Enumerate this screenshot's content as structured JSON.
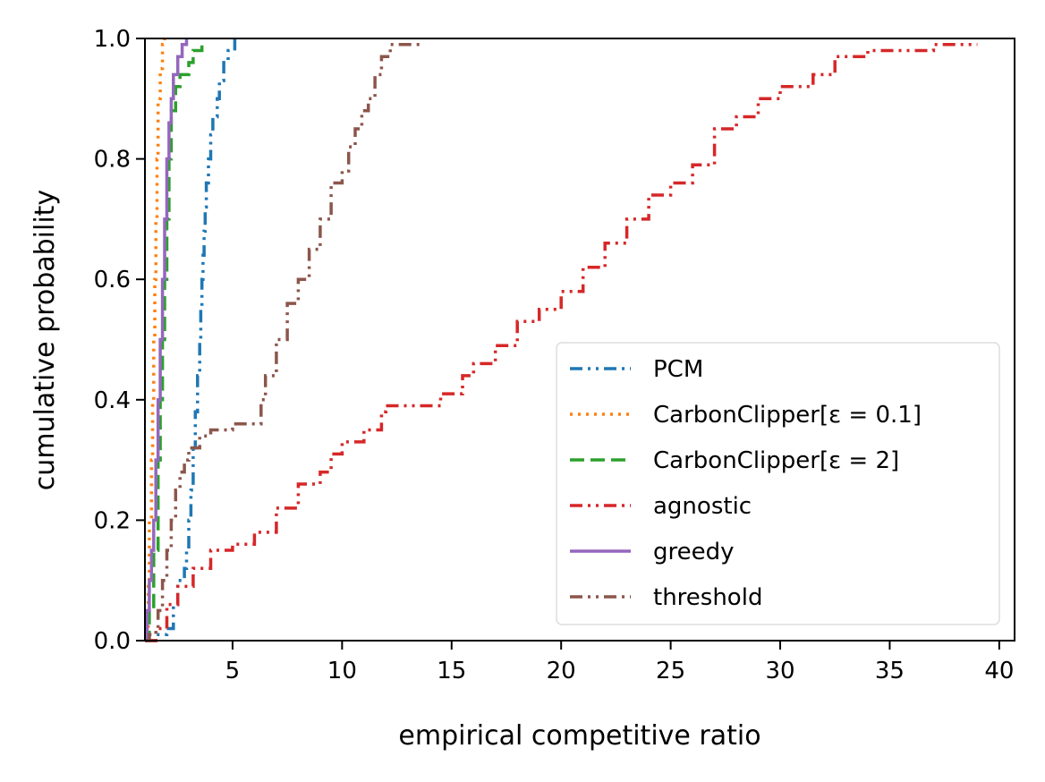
{
  "chart_data": {
    "type": "line",
    "xlabel": "empirical competitive ratio",
    "ylabel": "cumulative probability",
    "xlim": [
      1,
      40.7
    ],
    "ylim": [
      0,
      1.0
    ],
    "x_ticks": [
      5,
      10,
      15,
      20,
      25,
      30,
      35,
      40
    ],
    "y_ticks": [
      "0.0",
      "0.2",
      "0.4",
      "0.6",
      "0.8",
      "1.0"
    ],
    "grid": false,
    "legend_position": "lower-right",
    "series": [
      {
        "name": "PCM",
        "color": "#1f77b4",
        "dash": "dash-dot-dot",
        "points": [
          [
            1.0,
            0.0
          ],
          [
            1.5,
            0.01
          ],
          [
            2.0,
            0.02
          ],
          [
            2.3,
            0.06
          ],
          [
            2.5,
            0.1
          ],
          [
            2.8,
            0.12
          ],
          [
            2.9,
            0.15
          ],
          [
            3.0,
            0.2
          ],
          [
            3.1,
            0.25
          ],
          [
            3.2,
            0.32
          ],
          [
            3.3,
            0.38
          ],
          [
            3.4,
            0.44
          ],
          [
            3.5,
            0.5
          ],
          [
            3.55,
            0.55
          ],
          [
            3.6,
            0.6
          ],
          [
            3.65,
            0.64
          ],
          [
            3.7,
            0.68
          ],
          [
            3.75,
            0.72
          ],
          [
            3.8,
            0.76
          ],
          [
            3.9,
            0.8
          ],
          [
            4.0,
            0.84
          ],
          [
            4.1,
            0.87
          ],
          [
            4.3,
            0.9
          ],
          [
            4.4,
            0.93
          ],
          [
            4.6,
            0.96
          ],
          [
            4.8,
            0.98
          ],
          [
            5.1,
            1.0
          ]
        ]
      },
      {
        "name": "CarbonClipper[ε = 0.1]",
        "color": "#ff7f0e",
        "dash": "dotted",
        "points": [
          [
            1.0,
            0.0
          ],
          [
            1.15,
            0.1
          ],
          [
            1.2,
            0.2
          ],
          [
            1.3,
            0.3
          ],
          [
            1.35,
            0.4
          ],
          [
            1.4,
            0.5
          ],
          [
            1.45,
            0.6
          ],
          [
            1.5,
            0.7
          ],
          [
            1.55,
            0.8
          ],
          [
            1.6,
            0.9
          ],
          [
            1.7,
            0.95
          ],
          [
            1.8,
            0.99
          ],
          [
            1.9,
            1.0
          ]
        ]
      },
      {
        "name": "CarbonClipper[ε = 2]",
        "color": "#2ca02c",
        "dash": "dashed",
        "points": [
          [
            1.0,
            0.0
          ],
          [
            1.2,
            0.05
          ],
          [
            1.4,
            0.15
          ],
          [
            1.6,
            0.3
          ],
          [
            1.7,
            0.4
          ],
          [
            1.8,
            0.5
          ],
          [
            1.9,
            0.6
          ],
          [
            2.0,
            0.7
          ],
          [
            2.1,
            0.8
          ],
          [
            2.2,
            0.88
          ],
          [
            2.4,
            0.92
          ],
          [
            2.6,
            0.94
          ],
          [
            3.0,
            0.96
          ],
          [
            3.2,
            0.98
          ],
          [
            3.6,
            1.0
          ]
        ]
      },
      {
        "name": "agnostic",
        "color": "#d62728",
        "dash": "dash-dot-dot",
        "points": [
          [
            1.0,
            0.0
          ],
          [
            1.5,
            0.02
          ],
          [
            2.0,
            0.06
          ],
          [
            2.5,
            0.09
          ],
          [
            3.2,
            0.12
          ],
          [
            4.0,
            0.15
          ],
          [
            5.0,
            0.16
          ],
          [
            6.0,
            0.18
          ],
          [
            7.0,
            0.22
          ],
          [
            8.0,
            0.26
          ],
          [
            9.0,
            0.28
          ],
          [
            9.5,
            0.31
          ],
          [
            10.0,
            0.33
          ],
          [
            11.0,
            0.35
          ],
          [
            11.8,
            0.38
          ],
          [
            12.0,
            0.39
          ],
          [
            14.0,
            0.39
          ],
          [
            14.5,
            0.41
          ],
          [
            15.5,
            0.44
          ],
          [
            16.0,
            0.46
          ],
          [
            17.0,
            0.49
          ],
          [
            18.0,
            0.53
          ],
          [
            19.0,
            0.55
          ],
          [
            20.0,
            0.58
          ],
          [
            21.0,
            0.62
          ],
          [
            22.0,
            0.66
          ],
          [
            23.0,
            0.7
          ],
          [
            24.0,
            0.74
          ],
          [
            25.0,
            0.76
          ],
          [
            26.0,
            0.79
          ],
          [
            27.0,
            0.85
          ],
          [
            28.0,
            0.87
          ],
          [
            29.0,
            0.9
          ],
          [
            30.0,
            0.92
          ],
          [
            31.5,
            0.94
          ],
          [
            32.5,
            0.97
          ],
          [
            34.0,
            0.98
          ],
          [
            37.0,
            0.99
          ],
          [
            39.0,
            0.99
          ]
        ]
      },
      {
        "name": "greedy",
        "color": "#9467bd",
        "dash": "solid",
        "points": [
          [
            1.0,
            0.0
          ],
          [
            1.1,
            0.05
          ],
          [
            1.2,
            0.1
          ],
          [
            1.3,
            0.15
          ],
          [
            1.4,
            0.2
          ],
          [
            1.5,
            0.3
          ],
          [
            1.6,
            0.4
          ],
          [
            1.7,
            0.5
          ],
          [
            1.8,
            0.6
          ],
          [
            1.9,
            0.7
          ],
          [
            2.0,
            0.8
          ],
          [
            2.1,
            0.86
          ],
          [
            2.2,
            0.9
          ],
          [
            2.3,
            0.94
          ],
          [
            2.5,
            0.97
          ],
          [
            2.7,
            0.99
          ],
          [
            2.9,
            1.0
          ]
        ]
      },
      {
        "name": "threshold",
        "color": "#8c564b",
        "dash": "dash-dot-dot",
        "points": [
          [
            1.0,
            0.0
          ],
          [
            1.2,
            0.01
          ],
          [
            1.5,
            0.02
          ],
          [
            1.6,
            0.05
          ],
          [
            1.8,
            0.1
          ],
          [
            2.0,
            0.15
          ],
          [
            2.2,
            0.2
          ],
          [
            2.4,
            0.25
          ],
          [
            2.6,
            0.28
          ],
          [
            2.8,
            0.3
          ],
          [
            3.0,
            0.32
          ],
          [
            3.5,
            0.34
          ],
          [
            4.0,
            0.35
          ],
          [
            5.0,
            0.36
          ],
          [
            6.0,
            0.36
          ],
          [
            6.3,
            0.4
          ],
          [
            6.5,
            0.44
          ],
          [
            7.0,
            0.5
          ],
          [
            7.5,
            0.56
          ],
          [
            8.0,
            0.6
          ],
          [
            8.5,
            0.65
          ],
          [
            9.0,
            0.7
          ],
          [
            9.5,
            0.76
          ],
          [
            10.0,
            0.78
          ],
          [
            10.3,
            0.82
          ],
          [
            10.6,
            0.85
          ],
          [
            10.9,
            0.88
          ],
          [
            11.2,
            0.9
          ],
          [
            11.5,
            0.94
          ],
          [
            11.8,
            0.97
          ],
          [
            12.2,
            0.99
          ],
          [
            13.6,
            0.99
          ]
        ]
      }
    ]
  }
}
